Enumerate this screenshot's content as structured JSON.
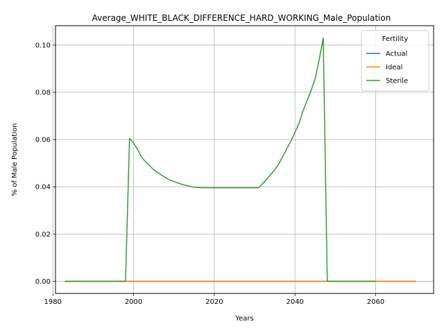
{
  "chart_data": {
    "type": "line",
    "title": "Average_WHITE_BLACK_DIFFERENCE_HARD_WORKING_Male_Population",
    "xlabel": "Years",
    "ylabel": "% of Male Population",
    "xlim": [
      1980.65,
      2074.35
    ],
    "ylim": [
      -0.00515,
      0.1082
    ],
    "xticks": [
      1980,
      2000,
      2020,
      2040,
      2060
    ],
    "yticks": [
      0.0,
      0.02,
      0.04,
      0.06,
      0.08,
      0.1
    ],
    "ytick_labels": [
      "0.00",
      "0.02",
      "0.04",
      "0.06",
      "0.08",
      "0.10"
    ],
    "grid": true,
    "legend": {
      "title": "Fertility",
      "placement": "top-right"
    },
    "series": [
      {
        "name": "Actual",
        "color": "#1f77b4",
        "x": [
          1983,
          2070
        ],
        "y": [
          0.0,
          0.0
        ]
      },
      {
        "name": "Ideal",
        "color": "#ff7f0e",
        "x": [
          1983,
          2070
        ],
        "y": [
          0.0,
          0.0
        ]
      },
      {
        "name": "Sterile",
        "color": "#2ca02c",
        "x": [
          1983,
          1998,
          1999,
          2000,
          2001,
          2002,
          2003,
          2005,
          2007,
          2009,
          2012,
          2015,
          2017,
          2020,
          2025,
          2030,
          2031,
          2033,
          2035,
          2036,
          2037,
          2039,
          2041,
          2042,
          2044,
          2045,
          2046,
          2047,
          2048,
          2050,
          2055,
          2060
        ],
        "y": [
          0.0,
          0.0,
          0.0605,
          0.0585,
          0.0558,
          0.0525,
          0.0505,
          0.0472,
          0.0448,
          0.0428,
          0.041,
          0.0398,
          0.0396,
          0.0396,
          0.0396,
          0.0396,
          0.0396,
          0.0432,
          0.0472,
          0.0497,
          0.053,
          0.0594,
          0.0668,
          0.0722,
          0.0808,
          0.0858,
          0.0938,
          0.103,
          0.0,
          0.0,
          0.0,
          0.0
        ]
      }
    ]
  }
}
